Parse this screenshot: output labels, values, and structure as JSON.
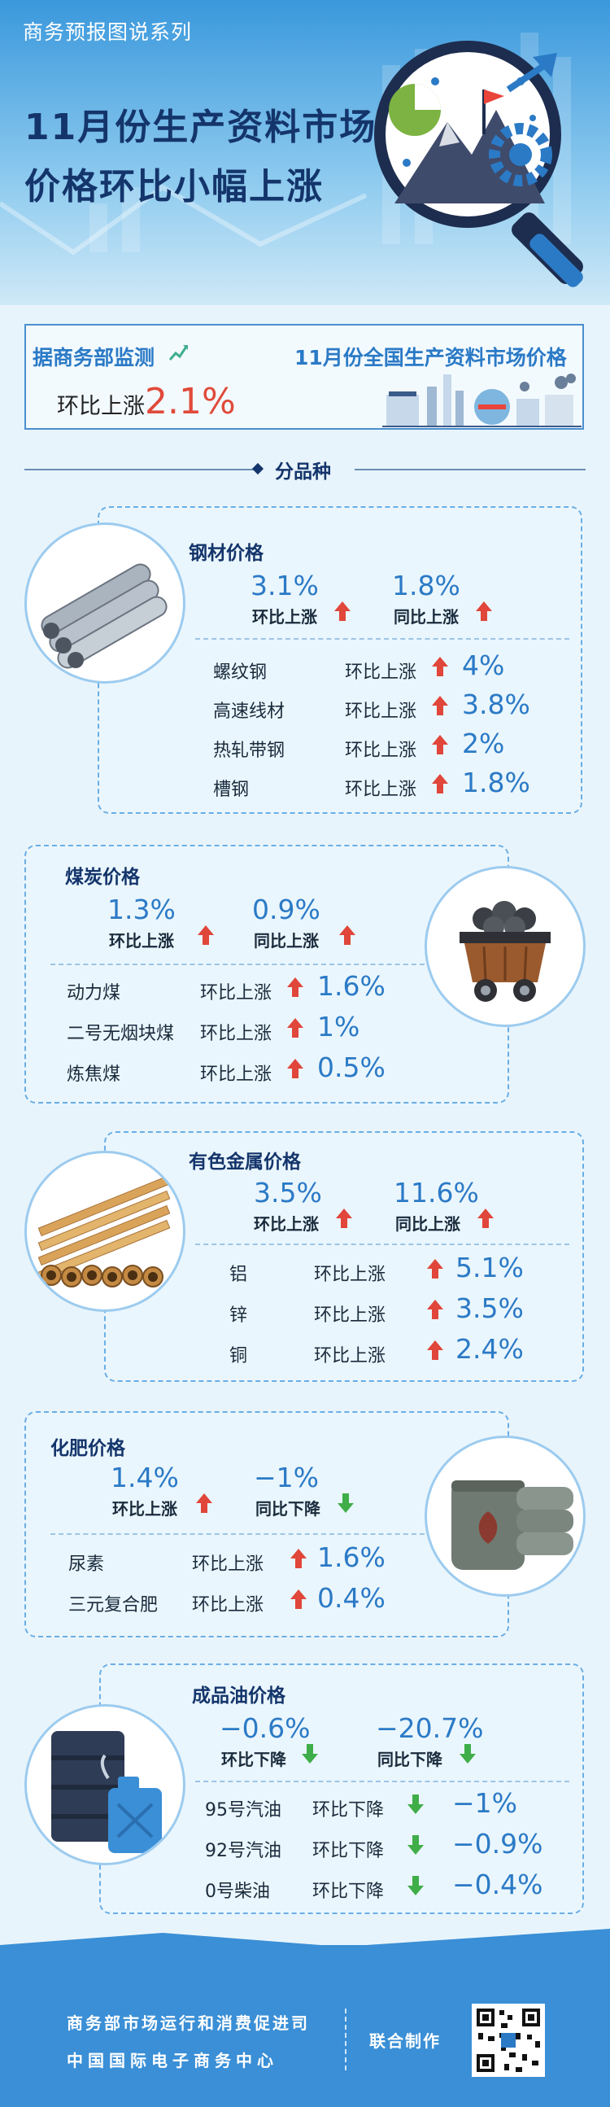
{
  "header": {
    "series": "商务预报图说系列",
    "title_line1": "11月份生产资料市场",
    "title_line2": "价格环比小幅上涨"
  },
  "summary": {
    "source": "据商务部监测",
    "scope": "11月份全国生产资料市场价格",
    "change_label": "环比上涨",
    "change_value": "2.1%"
  },
  "divider": "分品种",
  "sections": {
    "steel": {
      "title": "钢材价格",
      "mom_value": "3.1%",
      "mom_label": "环比上涨",
      "yoy_value": "1.8%",
      "yoy_label": "同比上涨",
      "items": [
        {
          "name": "螺纹钢",
          "label": "环比上涨",
          "value": "4%"
        },
        {
          "name": "高速线材",
          "label": "环比上涨",
          "value": "3.8%"
        },
        {
          "name": "热轧带钢",
          "label": "环比上涨",
          "value": "2%"
        },
        {
          "name": "槽钢",
          "label": "环比上涨",
          "value": "1.8%"
        }
      ]
    },
    "coal": {
      "title": "煤炭价格",
      "mom_value": "1.3%",
      "mom_label": "环比上涨",
      "yoy_value": "0.9%",
      "yoy_label": "同比上涨",
      "items": [
        {
          "name": "动力煤",
          "label": "环比上涨",
          "value": "1.6%"
        },
        {
          "name": "二号无烟块煤",
          "label": "环比上涨",
          "value": "1%"
        },
        {
          "name": "炼焦煤",
          "label": "环比上涨",
          "value": "0.5%"
        }
      ]
    },
    "metal": {
      "title": "有色金属价格",
      "mom_value": "3.5%",
      "mom_label": "环比上涨",
      "yoy_value": "11.6%",
      "yoy_label": "同比上涨",
      "items": [
        {
          "name": "铝",
          "label": "环比上涨",
          "value": "5.1%"
        },
        {
          "name": "锌",
          "label": "环比上涨",
          "value": "3.5%"
        },
        {
          "name": "铜",
          "label": "环比上涨",
          "value": "2.4%"
        }
      ]
    },
    "fert": {
      "title": "化肥价格",
      "mom_value": "1.4%",
      "mom_label": "环比上涨",
      "yoy_value": "−1%",
      "yoy_label": "同比下降",
      "items": [
        {
          "name": "尿素",
          "label": "环比上涨",
          "value": "1.6%"
        },
        {
          "name": "三元复合肥",
          "label": "环比上涨",
          "value": "0.4%"
        }
      ]
    },
    "oil": {
      "title": "成品油价格",
      "mom_value": "−0.6%",
      "mom_label": "环比下降",
      "yoy_value": "−20.7%",
      "yoy_label": "同比下降",
      "items": [
        {
          "name": "95号汽油",
          "label": "环比下降",
          "value": "−1%"
        },
        {
          "name": "92号汽油",
          "label": "环比下降",
          "value": "−0.9%"
        },
        {
          "name": "0号柴油",
          "label": "环比下降",
          "value": "−0.4%"
        }
      ]
    }
  },
  "footer": {
    "org1": "商务部市场运行和消费促进司",
    "org2": "中国国际电子商务中心",
    "joint": "联合制作"
  },
  "colors": {
    "up": "#e0463a",
    "down": "#3fae49",
    "accent": "#2b7ac6",
    "navy": "#14356b"
  }
}
